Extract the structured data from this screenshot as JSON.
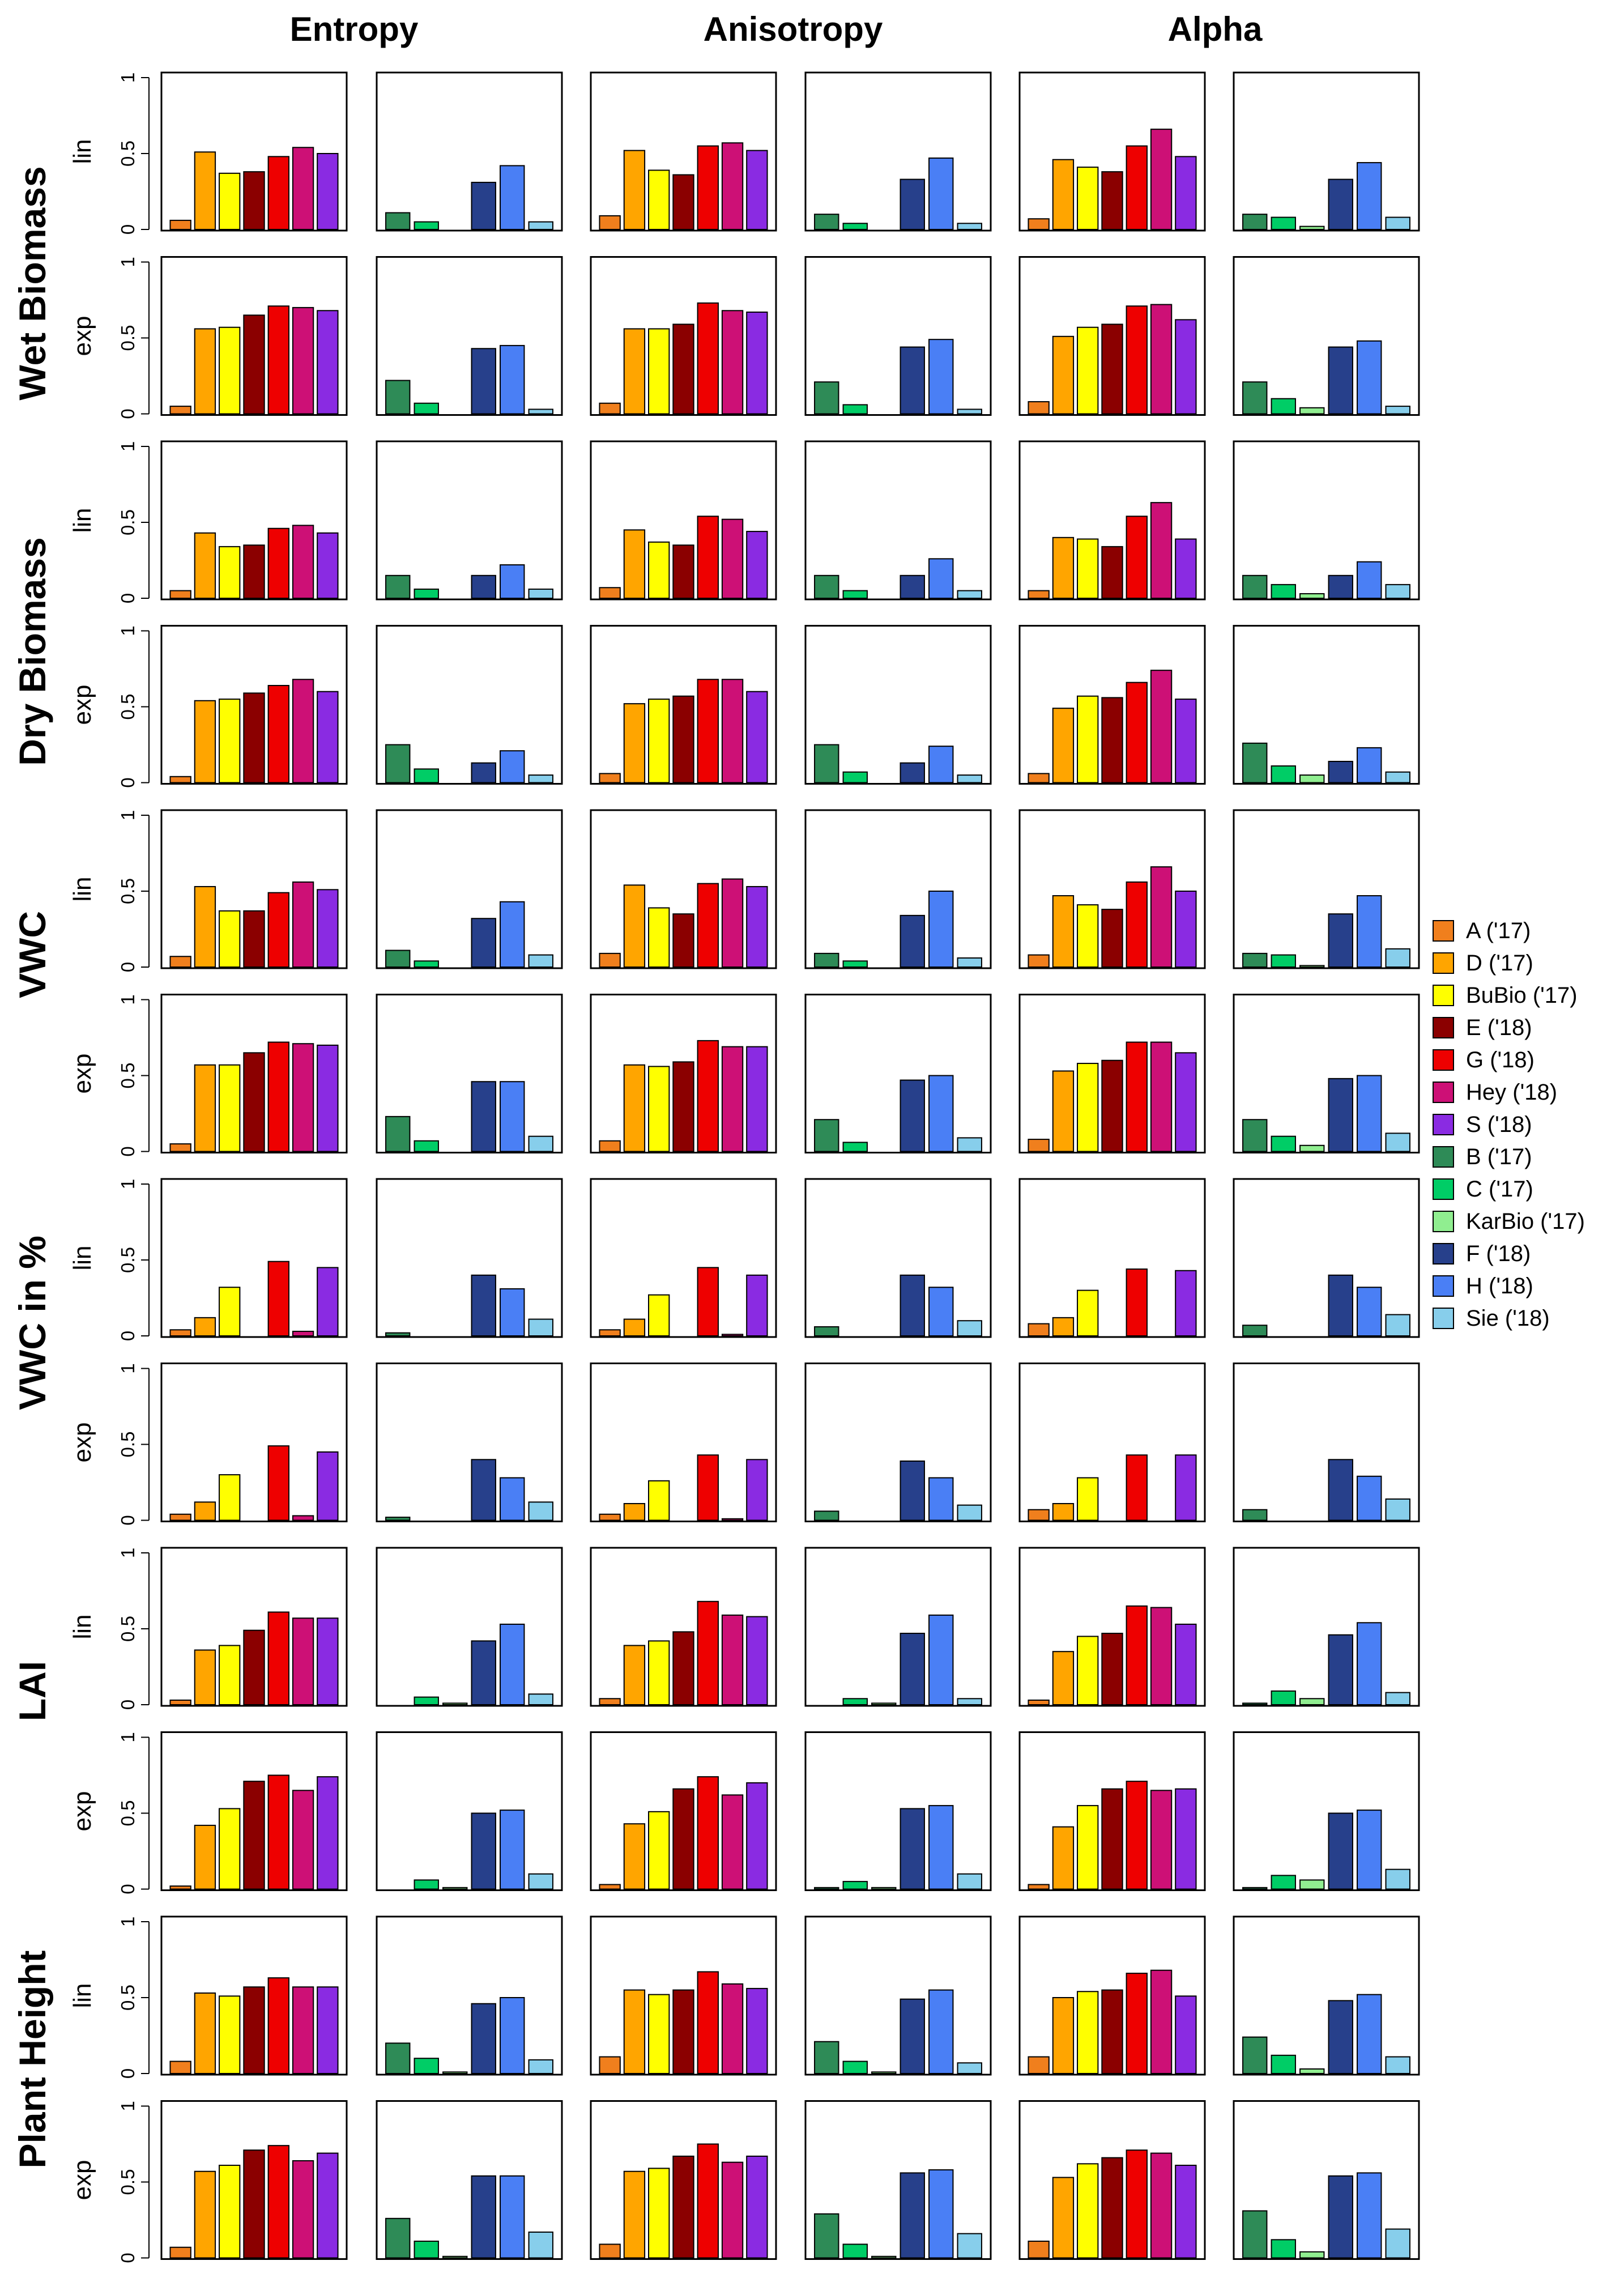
{
  "figure": {
    "column_titles": [
      "Entropy",
      "Anisotropy",
      "Alpha"
    ],
    "variable_labels": [
      "Wet Biomass",
      "Dry Biomass",
      "VWC",
      "VWC in %",
      "LAI",
      "Plant Height"
    ],
    "transform_labels": [
      "lin",
      "exp"
    ]
  },
  "chart_data": {
    "type": "bar",
    "description_of_layout": "small multiples: 12 rows (6 variables x lin/exp) by 6 panels (3 parameters x 2 crop groups)",
    "ylim": [
      0,
      1
    ],
    "y_ticks": [
      "0",
      "0.5",
      "1"
    ],
    "categories_group_a": [
      "A ('17)",
      "D ('17)",
      "BuBio ('17)",
      "E ('18)",
      "G ('18)",
      "Hey ('18)",
      "S ('18)"
    ],
    "categories_group_b": [
      "B ('17)",
      "C ('17)",
      "KarBio ('17)",
      "F ('18)",
      "H ('18)",
      "Sie ('18)"
    ],
    "colors_group_a": [
      "#F07F1D",
      "#FFA500",
      "#FFFF00",
      "#8B0000",
      "#EE0000",
      "#CD1076",
      "#8A2BE2"
    ],
    "colors_group_b": [
      "#2E8B57",
      "#00CD66",
      "#90EE90",
      "#27408B",
      "#4A7FF5",
      "#87CEEB"
    ],
    "rows": [
      {
        "variable": "Wet Biomass",
        "transform": "lin",
        "panels": [
          [
            0.06,
            0.51,
            0.37,
            0.38,
            0.48,
            0.54,
            0.5
          ],
          [
            0.11,
            0.05,
            0.0,
            0.31,
            0.42,
            0.05
          ],
          [
            0.09,
            0.52,
            0.39,
            0.36,
            0.55,
            0.57,
            0.52
          ],
          [
            0.1,
            0.04,
            0.0,
            0.33,
            0.47,
            0.04
          ],
          [
            0.07,
            0.46,
            0.41,
            0.38,
            0.55,
            0.66,
            0.48
          ],
          [
            0.1,
            0.08,
            0.02,
            0.33,
            0.44,
            0.08
          ]
        ]
      },
      {
        "variable": "Wet Biomass",
        "transform": "exp",
        "panels": [
          [
            0.05,
            0.56,
            0.57,
            0.65,
            0.71,
            0.7,
            0.68
          ],
          [
            0.22,
            0.07,
            0.0,
            0.43,
            0.45,
            0.03
          ],
          [
            0.07,
            0.56,
            0.56,
            0.59,
            0.73,
            0.68,
            0.67
          ],
          [
            0.21,
            0.06,
            0.0,
            0.44,
            0.49,
            0.03
          ],
          [
            0.08,
            0.51,
            0.57,
            0.59,
            0.71,
            0.72,
            0.62
          ],
          [
            0.21,
            0.1,
            0.04,
            0.44,
            0.48,
            0.05
          ]
        ]
      },
      {
        "variable": "Dry Biomass",
        "transform": "lin",
        "panels": [
          [
            0.05,
            0.43,
            0.34,
            0.35,
            0.46,
            0.48,
            0.43
          ],
          [
            0.15,
            0.06,
            0.0,
            0.15,
            0.22,
            0.06
          ],
          [
            0.07,
            0.45,
            0.37,
            0.35,
            0.54,
            0.52,
            0.44
          ],
          [
            0.15,
            0.05,
            0.0,
            0.15,
            0.26,
            0.05
          ],
          [
            0.05,
            0.4,
            0.39,
            0.34,
            0.54,
            0.63,
            0.39
          ],
          [
            0.15,
            0.09,
            0.03,
            0.15,
            0.24,
            0.09
          ]
        ]
      },
      {
        "variable": "Dry Biomass",
        "transform": "exp",
        "panels": [
          [
            0.04,
            0.54,
            0.55,
            0.59,
            0.64,
            0.68,
            0.6
          ],
          [
            0.25,
            0.09,
            0.0,
            0.13,
            0.21,
            0.05
          ],
          [
            0.06,
            0.52,
            0.55,
            0.57,
            0.68,
            0.68,
            0.6
          ],
          [
            0.25,
            0.07,
            0.0,
            0.13,
            0.24,
            0.05
          ],
          [
            0.06,
            0.49,
            0.57,
            0.56,
            0.66,
            0.74,
            0.55
          ],
          [
            0.26,
            0.11,
            0.05,
            0.14,
            0.23,
            0.07
          ]
        ]
      },
      {
        "variable": "VWC",
        "transform": "lin",
        "panels": [
          [
            0.07,
            0.53,
            0.37,
            0.37,
            0.49,
            0.56,
            0.51
          ],
          [
            0.11,
            0.04,
            0.0,
            0.32,
            0.43,
            0.08
          ],
          [
            0.09,
            0.54,
            0.39,
            0.35,
            0.55,
            0.58,
            0.53
          ],
          [
            0.09,
            0.04,
            0.0,
            0.34,
            0.5,
            0.06
          ],
          [
            0.08,
            0.47,
            0.41,
            0.38,
            0.56,
            0.66,
            0.5
          ],
          [
            0.09,
            0.08,
            0.01,
            0.35,
            0.47,
            0.12
          ]
        ]
      },
      {
        "variable": "VWC",
        "transform": "exp",
        "panels": [
          [
            0.05,
            0.57,
            0.57,
            0.65,
            0.72,
            0.71,
            0.7
          ],
          [
            0.23,
            0.07,
            0.0,
            0.46,
            0.46,
            0.1
          ],
          [
            0.07,
            0.57,
            0.56,
            0.59,
            0.73,
            0.69,
            0.69
          ],
          [
            0.21,
            0.06,
            0.0,
            0.47,
            0.5,
            0.09
          ],
          [
            0.08,
            0.53,
            0.58,
            0.6,
            0.72,
            0.72,
            0.65
          ],
          [
            0.21,
            0.1,
            0.04,
            0.48,
            0.5,
            0.12
          ]
        ]
      },
      {
        "variable": "VWC in %",
        "transform": "lin",
        "panels": [
          [
            0.04,
            0.12,
            0.32,
            0.0,
            0.49,
            0.03,
            0.45
          ],
          [
            0.02,
            0.0,
            0.0,
            0.4,
            0.31,
            0.11
          ],
          [
            0.04,
            0.11,
            0.27,
            0.0,
            0.45,
            0.01,
            0.4
          ],
          [
            0.06,
            0.0,
            0.0,
            0.4,
            0.32,
            0.1
          ],
          [
            0.08,
            0.12,
            0.3,
            0.0,
            0.44,
            0.0,
            0.43
          ],
          [
            0.07,
            0.0,
            0.0,
            0.4,
            0.32,
            0.14
          ]
        ]
      },
      {
        "variable": "VWC in %",
        "transform": "exp",
        "panels": [
          [
            0.04,
            0.12,
            0.3,
            0.0,
            0.49,
            0.03,
            0.45
          ],
          [
            0.02,
            0.0,
            0.0,
            0.4,
            0.28,
            0.12
          ],
          [
            0.04,
            0.11,
            0.26,
            0.0,
            0.43,
            0.01,
            0.4
          ],
          [
            0.06,
            0.0,
            0.0,
            0.39,
            0.28,
            0.1
          ],
          [
            0.07,
            0.11,
            0.28,
            0.0,
            0.43,
            0.0,
            0.43
          ],
          [
            0.07,
            0.0,
            0.0,
            0.4,
            0.29,
            0.14
          ]
        ]
      },
      {
        "variable": "LAI",
        "transform": "lin",
        "panels": [
          [
            0.03,
            0.36,
            0.39,
            0.49,
            0.61,
            0.57,
            0.57
          ],
          [
            0.0,
            0.05,
            0.01,
            0.42,
            0.53,
            0.07
          ],
          [
            0.04,
            0.39,
            0.42,
            0.48,
            0.68,
            0.59,
            0.58
          ],
          [
            0.0,
            0.04,
            0.01,
            0.47,
            0.59,
            0.04
          ],
          [
            0.03,
            0.35,
            0.45,
            0.47,
            0.65,
            0.64,
            0.53
          ],
          [
            0.01,
            0.09,
            0.04,
            0.46,
            0.54,
            0.08
          ]
        ]
      },
      {
        "variable": "LAI",
        "transform": "exp",
        "panels": [
          [
            0.02,
            0.42,
            0.53,
            0.71,
            0.75,
            0.65,
            0.74
          ],
          [
            0.0,
            0.06,
            0.01,
            0.5,
            0.52,
            0.1
          ],
          [
            0.03,
            0.43,
            0.51,
            0.66,
            0.74,
            0.62,
            0.7
          ],
          [
            0.01,
            0.05,
            0.01,
            0.53,
            0.55,
            0.1
          ],
          [
            0.03,
            0.41,
            0.55,
            0.66,
            0.71,
            0.65,
            0.66
          ],
          [
            0.01,
            0.09,
            0.06,
            0.5,
            0.52,
            0.13
          ]
        ]
      },
      {
        "variable": "Plant Height",
        "transform": "lin",
        "panels": [
          [
            0.08,
            0.53,
            0.51,
            0.57,
            0.63,
            0.57,
            0.57
          ],
          [
            0.2,
            0.1,
            0.01,
            0.46,
            0.5,
            0.09
          ],
          [
            0.11,
            0.55,
            0.52,
            0.55,
            0.67,
            0.59,
            0.56
          ],
          [
            0.21,
            0.08,
            0.01,
            0.49,
            0.55,
            0.07
          ],
          [
            0.11,
            0.5,
            0.54,
            0.55,
            0.66,
            0.68,
            0.51
          ],
          [
            0.24,
            0.12,
            0.03,
            0.48,
            0.52,
            0.11
          ]
        ]
      },
      {
        "variable": "Plant Height",
        "transform": "exp",
        "panels": [
          [
            0.07,
            0.57,
            0.61,
            0.71,
            0.74,
            0.64,
            0.69
          ],
          [
            0.26,
            0.11,
            0.01,
            0.54,
            0.54,
            0.17
          ],
          [
            0.09,
            0.57,
            0.59,
            0.67,
            0.75,
            0.63,
            0.67
          ],
          [
            0.29,
            0.09,
            0.01,
            0.56,
            0.58,
            0.16
          ],
          [
            0.11,
            0.53,
            0.62,
            0.66,
            0.71,
            0.69,
            0.61
          ],
          [
            0.31,
            0.12,
            0.04,
            0.54,
            0.56,
            0.19
          ]
        ]
      }
    ]
  },
  "legend": {
    "placement": "right",
    "entries": [
      {
        "label": "A ('17)",
        "color": "#F07F1D"
      },
      {
        "label": "D ('17)",
        "color": "#FFA500"
      },
      {
        "label": "BuBio ('17)",
        "color": "#FFFF00"
      },
      {
        "label": "E ('18)",
        "color": "#8B0000"
      },
      {
        "label": "G ('18)",
        "color": "#EE0000"
      },
      {
        "label": "Hey ('18)",
        "color": "#CD1076"
      },
      {
        "label": "S ('18)",
        "color": "#8A2BE2"
      },
      {
        "label": "B ('17)",
        "color": "#2E8B57"
      },
      {
        "label": "C ('17)",
        "color": "#00CD66"
      },
      {
        "label": "KarBio ('17)",
        "color": "#90EE90"
      },
      {
        "label": "F ('18)",
        "color": "#27408B"
      },
      {
        "label": "H ('18)",
        "color": "#4A7FF5"
      },
      {
        "label": "Sie ('18)",
        "color": "#87CEEB"
      }
    ]
  }
}
